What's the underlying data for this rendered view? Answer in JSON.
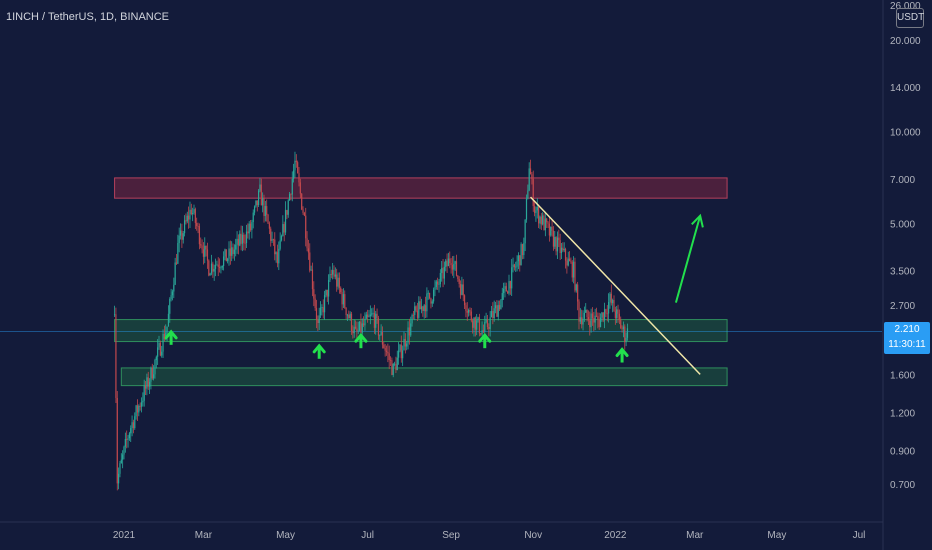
{
  "header": {
    "title": "1INCH / TetherUS, 1D, BINANCE"
  },
  "price_axis": {
    "unit": "USDT"
  },
  "last_price": {
    "value": "2.210",
    "countdown": "11:30:11"
  },
  "colors": {
    "background": "#131b3a",
    "resistance_zone": "#7a2440",
    "support_zone": "#1e5b3f",
    "trendline": "#f0e6a8",
    "projection_arrow": "#22e04d",
    "bounce_arrow": "#22e04d",
    "candle_up": "#2aa89a",
    "candle_down": "#c2484d",
    "last_price_tag": "#2a9df4"
  },
  "chart_data": {
    "type": "candlestick",
    "title": "1INCH / TetherUS, 1D, BINANCE",
    "y_scale": "log",
    "ylim": [
      0.62,
      26.0
    ],
    "y_ticks": [
      "26.000",
      "20.000",
      "14.000",
      "10.000",
      "7.000",
      "5.000",
      "3.500",
      "2.700",
      "1.600",
      "1.200",
      "0.900",
      "0.700"
    ],
    "y_tick_values": [
      26.0,
      20.0,
      14.0,
      10.0,
      7.0,
      5.0,
      3.5,
      2.7,
      1.6,
      1.2,
      0.9,
      0.7
    ],
    "x_ticks": [
      "2021",
      "Mar",
      "May",
      "Jul",
      "Sep",
      "Nov",
      "2022",
      "Mar",
      "May",
      "Jul"
    ],
    "x_tick_dates": [
      "2021-01-01",
      "2021-03-01",
      "2021-05-01",
      "2021-07-01",
      "2021-09-01",
      "2021-11-01",
      "2022-01-01",
      "2022-03-01",
      "2022-05-01",
      "2022-07-01"
    ],
    "price_path": [
      {
        "date": "2020-12-25",
        "price": 2.7
      },
      {
        "date": "2020-12-27",
        "price": 0.72
      },
      {
        "date": "2021-01-05",
        "price": 1.05
      },
      {
        "date": "2021-01-20",
        "price": 1.55
      },
      {
        "date": "2021-02-02",
        "price": 2.3
      },
      {
        "date": "2021-02-10",
        "price": 4.2
      },
      {
        "date": "2021-02-20",
        "price": 5.6
      },
      {
        "date": "2021-03-05",
        "price": 3.6
      },
      {
        "date": "2021-03-20",
        "price": 3.9
      },
      {
        "date": "2021-04-05",
        "price": 4.8
      },
      {
        "date": "2021-04-12",
        "price": 6.3
      },
      {
        "date": "2021-04-25",
        "price": 3.7
      },
      {
        "date": "2021-05-08",
        "price": 7.9
      },
      {
        "date": "2021-05-15",
        "price": 5.2
      },
      {
        "date": "2021-05-25",
        "price": 2.3
      },
      {
        "date": "2021-06-05",
        "price": 3.5
      },
      {
        "date": "2021-06-22",
        "price": 2.15
      },
      {
        "date": "2021-07-05",
        "price": 2.5
      },
      {
        "date": "2021-07-20",
        "price": 1.65
      },
      {
        "date": "2021-08-05",
        "price": 2.5
      },
      {
        "date": "2021-08-20",
        "price": 3.0
      },
      {
        "date": "2021-09-01",
        "price": 3.9
      },
      {
        "date": "2021-09-15",
        "price": 2.5
      },
      {
        "date": "2021-09-25",
        "price": 2.2
      },
      {
        "date": "2021-10-10",
        "price": 2.9
      },
      {
        "date": "2021-10-25",
        "price": 4.2
      },
      {
        "date": "2021-10-29",
        "price": 7.8
      },
      {
        "date": "2021-11-02",
        "price": 5.6
      },
      {
        "date": "2021-11-15",
        "price": 4.5
      },
      {
        "date": "2021-12-01",
        "price": 3.5
      },
      {
        "date": "2021-12-05",
        "price": 2.5
      },
      {
        "date": "2021-12-20",
        "price": 2.4
      },
      {
        "date": "2021-12-28",
        "price": 2.8
      },
      {
        "date": "2022-01-08",
        "price": 2.15
      },
      {
        "date": "2022-01-10",
        "price": 2.21
      }
    ],
    "last_price": 2.21,
    "zones": [
      {
        "type": "resistance",
        "from": "2020-12-25",
        "to": "2022-03-25",
        "low": 6.05,
        "high": 7.05
      },
      {
        "type": "support",
        "from": "2020-12-25",
        "to": "2022-03-25",
        "low": 2.05,
        "high": 2.42
      },
      {
        "type": "support",
        "from": "2020-12-30",
        "to": "2022-03-25",
        "low": 1.47,
        "high": 1.68
      }
    ],
    "trendline": {
      "from": {
        "date": "2021-10-30",
        "price": 6.1
      },
      "to": {
        "date": "2022-03-05",
        "price": 1.6
      }
    },
    "projection_arrow": {
      "from": {
        "date": "2022-02-15",
        "price": 2.75
      },
      "to": {
        "date": "2022-03-05",
        "price": 5.3
      }
    },
    "bounce_arrows": [
      {
        "date": "2021-02-05",
        "price": 2.0
      },
      {
        "date": "2021-05-26",
        "price": 1.8
      },
      {
        "date": "2021-06-26",
        "price": 1.95
      },
      {
        "date": "2021-09-26",
        "price": 1.95
      },
      {
        "date": "2022-01-06",
        "price": 1.75
      }
    ]
  }
}
